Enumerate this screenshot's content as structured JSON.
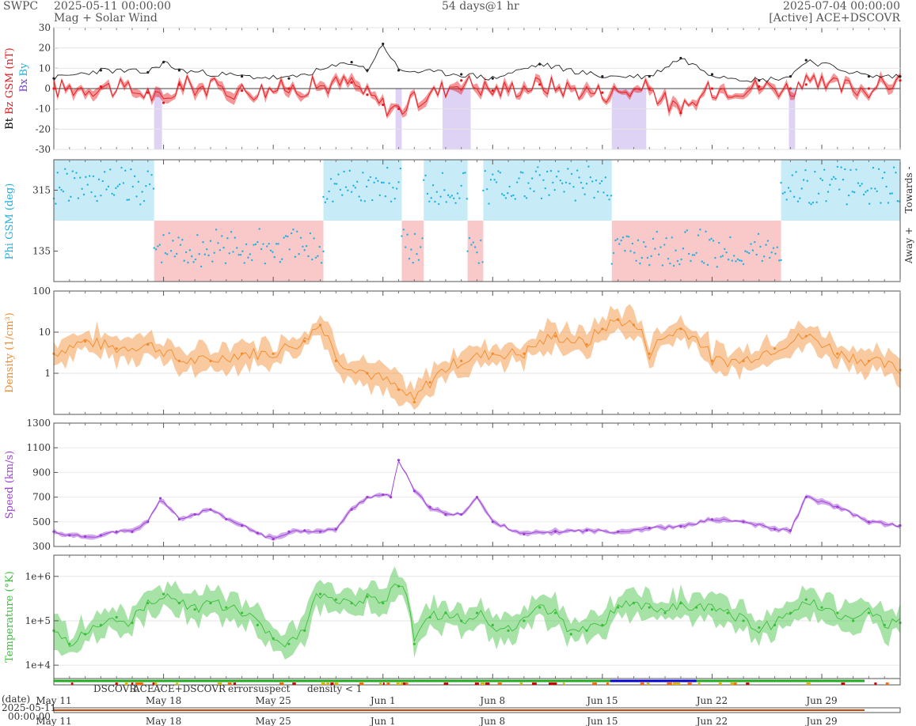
{
  "header": {
    "brand": "SWPC",
    "start_time": "2025-05-11 00:00:00",
    "plot_name": "Mag + Solar Wind",
    "span": "54 days@1 hr",
    "end_time": "2025-07-04 00:00:00",
    "source": "[Active] ACE+DSCOVR"
  },
  "colors": {
    "bt": "#222222",
    "bz": "#e8161b",
    "bx": "#7a3ad6",
    "by": "#1fb0e0",
    "phi": "#1fb0e0",
    "towards_fill": "#c7ecf8",
    "away_fill": "#f9c9c9",
    "density": "#f28a2a",
    "speed": "#9b3fd4",
    "temperature": "#3bbf3b",
    "dscovr": "#0000cc",
    "ace": "#22aa22",
    "ace_dscovr": "#dd00aa",
    "error": "#cc0000",
    "suspect": "#e0b000",
    "density_lt1": "#ff6600"
  },
  "chart_data": [
    {
      "id": "mag",
      "type": "line",
      "ylabel_parts": [
        "Bt",
        "Bz GSM (nT)"
      ],
      "side_legend": [
        "Bx",
        "By"
      ],
      "ylim": [
        -30,
        30
      ],
      "yticks": [
        "30",
        "20",
        "10",
        "0",
        "-10",
        "-20",
        "-30"
      ],
      "x_days": [
        0,
        3,
        6,
        7,
        8,
        12,
        15,
        19,
        20,
        21,
        22,
        26,
        28,
        31,
        35,
        38,
        40,
        42,
        45,
        47,
        48,
        52,
        54
      ],
      "series": [
        {
          "name": "Bt",
          "values": [
            5,
            9,
            8,
            13,
            9,
            6,
            5,
            13,
            9,
            22,
            9,
            7,
            5,
            12,
            6,
            6,
            15,
            7,
            4,
            6,
            14,
            6,
            6
          ]
        },
        {
          "name": "Bz GSM",
          "values": [
            0,
            1,
            -2,
            -7,
            2,
            -1,
            0,
            3,
            -3,
            -8,
            -10,
            4,
            -1,
            2,
            -2,
            0,
            -12,
            0,
            1,
            0,
            2,
            0,
            4
          ]
        }
      ]
    },
    {
      "id": "phi",
      "type": "scatter",
      "ylabel": "Phi GSM (deg)",
      "right_labels": [
        "Towards -",
        "Away +"
      ],
      "yticks": [
        "315",
        "135"
      ],
      "sectors": [
        {
          "start": 0,
          "end": 6.4,
          "value": "Towards"
        },
        {
          "start": 6.4,
          "end": 17.2,
          "value": "Away"
        },
        {
          "start": 17.2,
          "end": 22.2,
          "value": "Towards"
        },
        {
          "start": 22.2,
          "end": 23.6,
          "value": "Away"
        },
        {
          "start": 23.6,
          "end": 26.4,
          "value": "Towards"
        },
        {
          "start": 26.4,
          "end": 27.4,
          "value": "Away"
        },
        {
          "start": 27.4,
          "end": 35.6,
          "value": "Towards"
        },
        {
          "start": 35.6,
          "end": 46.4,
          "value": "Away"
        },
        {
          "start": 46.4,
          "end": 54,
          "value": "Towards"
        }
      ]
    },
    {
      "id": "density",
      "type": "line",
      "ylabel": "Density (1/cm³)",
      "scale": "log",
      "ylim": [
        0.1,
        100
      ],
      "yticks": [
        "100",
        "10",
        "1"
      ],
      "x_days": [
        0,
        2,
        4,
        6,
        8,
        10,
        12,
        14,
        16,
        17,
        18,
        20,
        22,
        23,
        24,
        26,
        28,
        30,
        32,
        34,
        35,
        36,
        37,
        38,
        40,
        42,
        44,
        46,
        48,
        50,
        52,
        54
      ],
      "values": [
        3,
        6,
        4,
        5,
        2,
        2,
        3,
        3,
        6,
        15,
        2,
        1,
        0.4,
        0.2,
        0.6,
        2,
        3,
        3,
        8,
        5,
        12,
        20,
        15,
        3,
        12,
        2,
        2,
        4,
        8,
        3,
        2,
        1.2
      ]
    },
    {
      "id": "speed",
      "type": "line",
      "ylabel": "Speed (km/s)",
      "ylim": [
        300,
        1300
      ],
      "yticks": [
        "1300",
        "1100",
        "900",
        "700",
        "500",
        "300"
      ],
      "x_days": [
        0,
        1,
        2,
        3,
        4,
        5,
        6,
        6.8,
        8,
        9,
        10,
        11,
        12,
        13,
        14,
        15,
        16,
        17,
        18,
        19,
        20,
        21,
        21.5,
        22,
        23,
        24,
        25,
        26,
        27,
        28,
        30,
        32,
        34,
        36,
        38,
        40,
        42,
        44,
        46,
        47,
        48,
        50,
        52,
        54
      ],
      "values": [
        420,
        390,
        380,
        390,
        420,
        420,
        500,
        690,
        520,
        560,
        600,
        520,
        470,
        410,
        360,
        420,
        430,
        420,
        440,
        600,
        700,
        720,
        700,
        1000,
        750,
        620,
        560,
        560,
        700,
        500,
        400,
        420,
        430,
        420,
        450,
        460,
        520,
        500,
        440,
        430,
        700,
        620,
        500,
        470
      ]
    },
    {
      "id": "temperature",
      "type": "line",
      "ylabel": "Temperature (°K)",
      "scale": "log",
      "ylim": [
        5000,
        3000000
      ],
      "yticks": [
        "1e+6",
        "1e+5",
        "1e+4"
      ],
      "x_days": [
        0,
        1,
        2,
        3,
        4,
        5,
        6,
        7,
        8,
        9,
        10,
        11,
        12,
        13,
        14,
        15,
        16,
        17,
        18,
        19,
        20,
        21,
        22,
        23,
        24,
        25,
        26,
        27,
        28,
        29,
        30,
        31,
        32,
        33,
        34,
        35,
        36,
        37,
        38,
        39,
        40,
        41,
        42,
        43,
        44,
        45,
        46,
        47,
        48,
        49,
        50,
        51,
        52,
        53,
        54
      ],
      "values": [
        60000,
        30000,
        50000,
        80000,
        120000,
        90000,
        250000,
        400000,
        250000,
        180000,
        250000,
        200000,
        150000,
        80000,
        40000,
        30000,
        60000,
        400000,
        300000,
        250000,
        350000,
        250000,
        600000,
        30000,
        120000,
        150000,
        100000,
        150000,
        80000,
        60000,
        100000,
        200000,
        150000,
        50000,
        60000,
        80000,
        200000,
        250000,
        200000,
        150000,
        250000,
        200000,
        180000,
        150000,
        100000,
        70000,
        80000,
        150000,
        300000,
        200000,
        150000,
        100000,
        150000,
        80000,
        90000
      ]
    }
  ],
  "status_legend": [
    "DSCOVR",
    "ACE",
    "ACE+DSCOVR",
    "error",
    "suspect",
    "density < 1"
  ],
  "x_axis": {
    "tick_labels": [
      "May 11",
      "May 18",
      "May 25",
      "Jun 1",
      "Jun 8",
      "Jun 15",
      "Jun 22",
      "Jun 29"
    ],
    "date_label": "(date)",
    "start_date": "2025-05-11",
    "start_clock": "00:00:00"
  }
}
